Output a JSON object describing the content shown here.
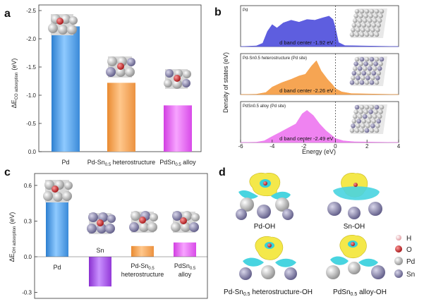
{
  "chart_data": [
    {
      "panel": "a",
      "type": "bar",
      "ylabel_main": "ΔE",
      "ylabel_sub": "CO adsorption",
      "ylabel_unit": "(eV)",
      "ylim": [
        0,
        -2.6
      ],
      "yticks": [
        "-2.5",
        "-2.0",
        "-1.5",
        "-1.0",
        "-0.5",
        "0.0"
      ],
      "ytick_values": [
        -2.5,
        -2.0,
        -1.5,
        -1.0,
        -0.5,
        0.0
      ],
      "categories": [
        "Pd",
        "Pd-Sn0.5 heterostructure",
        "PdSn0.5 alloy"
      ],
      "category_parts": [
        [
          "Pd",
          "",
          ""
        ],
        [
          "Pd-Sn",
          "0.5",
          " heterostructure"
        ],
        [
          "PdSn",
          "0.5",
          " alloy"
        ]
      ],
      "values": [
        -2.22,
        -1.22,
        -0.82
      ],
      "colors": [
        "#4aa0e6",
        "#f5a45a",
        "#e45cf0"
      ]
    },
    {
      "panel": "b",
      "type": "area",
      "xlabel": "Energy (eV)",
      "ylabel": "Density of states (eV)",
      "xlim": [
        -6,
        4
      ],
      "xticks": [
        "-6",
        "-4",
        "-2",
        "0",
        "2",
        "4"
      ],
      "xtick_values": [
        -6,
        -4,
        -2,
        0,
        2,
        4
      ],
      "subplots": [
        {
          "label": "Pd",
          "annotation": "d band center -1.92 eV",
          "color": "#5555dd",
          "center": -1.92
        },
        {
          "label": "Pd-Sn0.5 heterostructure (Pd site)",
          "annotation": "d band center -2.26 eV",
          "color": "#f5a04a",
          "center": -2.26
        },
        {
          "label": "PdSn0.5 alloy (Pd site)",
          "annotation": "d band center -2.49 eV",
          "color": "#ee7cf0",
          "center": -2.49
        }
      ]
    },
    {
      "panel": "c",
      "type": "bar",
      "ylabel_main": "ΔE",
      "ylabel_sub": "OH adsorption",
      "ylabel_unit": "(eV)",
      "ylim": [
        -0.35,
        0.7
      ],
      "yticks": [
        "0.6",
        "0.3",
        "0.0",
        "-0.3"
      ],
      "ytick_values": [
        0.6,
        0.3,
        0.0,
        -0.3
      ],
      "categories": [
        "Pd",
        "Sn",
        "Pd-Sn0.5 heterostructure",
        "PdSn0.5 alloy"
      ],
      "values": [
        0.5,
        -0.25,
        0.09,
        0.12
      ],
      "colors": [
        "#4aa0e6",
        "#a040e0",
        "#f5a45a",
        "#e45cf0"
      ]
    }
  ],
  "panel_d": {
    "label": "d",
    "captions": [
      "Pd-OH",
      "Sn-OH",
      "Pd-Sn0.5 heterostructure-OH",
      "PdSn0.5 alloy-OH"
    ],
    "legend": [
      {
        "symbol": "H",
        "color": "#f3c8cc"
      },
      {
        "symbol": "O",
        "color": "#d0191b"
      },
      {
        "symbol": "Pd",
        "color": "#c8c8c8"
      },
      {
        "symbol": "Sn",
        "color": "#8e8ab2"
      }
    ]
  },
  "labels": {
    "a": "a",
    "b": "b",
    "c": "c",
    "sub05": "0.5",
    "c_cat_pd": "Pd",
    "c_cat_sn": "Sn",
    "c_cat_het_1": "Pd-Sn",
    "c_cat_het_2": "heterostructure",
    "c_cat_alloy_1": "PdSn",
    "c_cat_alloy_2": "alloy"
  }
}
